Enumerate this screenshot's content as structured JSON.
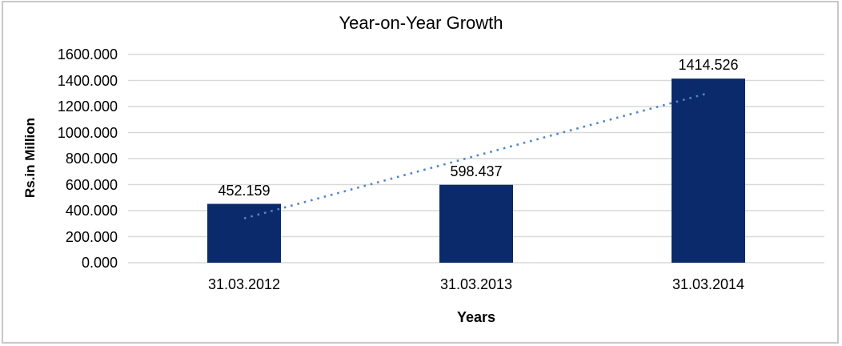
{
  "chart_data": {
    "type": "bar",
    "title": "Year-on-Year Growth",
    "xlabel": "Years",
    "ylabel": "Rs.in Million",
    "categories": [
      "31.03.2012",
      "31.03.2013",
      "31.03.2014"
    ],
    "values": [
      452.159,
      598.437,
      1414.526
    ],
    "data_labels": [
      "452.159",
      "598.437",
      "1414.526"
    ],
    "ylim": [
      0,
      1600
    ],
    "ytick_step": 200,
    "ytick_labels": [
      "0.000",
      "200.000",
      "400.000",
      "600.000",
      "800.000",
      "1000.000",
      "1200.000",
      "1400.000",
      "1600.000"
    ],
    "grid": true,
    "legend_position": "none",
    "trendline": {
      "type": "linear",
      "style": "dotted",
      "endpoints_values": [
        340.52,
        1302.89
      ]
    },
    "colors": {
      "bar": "#0b2a6b",
      "trendline": "#4f86c8",
      "gridline": "#d9d9d9",
      "text": "#000000",
      "frame_border": "#c8c8c8",
      "background": "#ffffff"
    }
  }
}
